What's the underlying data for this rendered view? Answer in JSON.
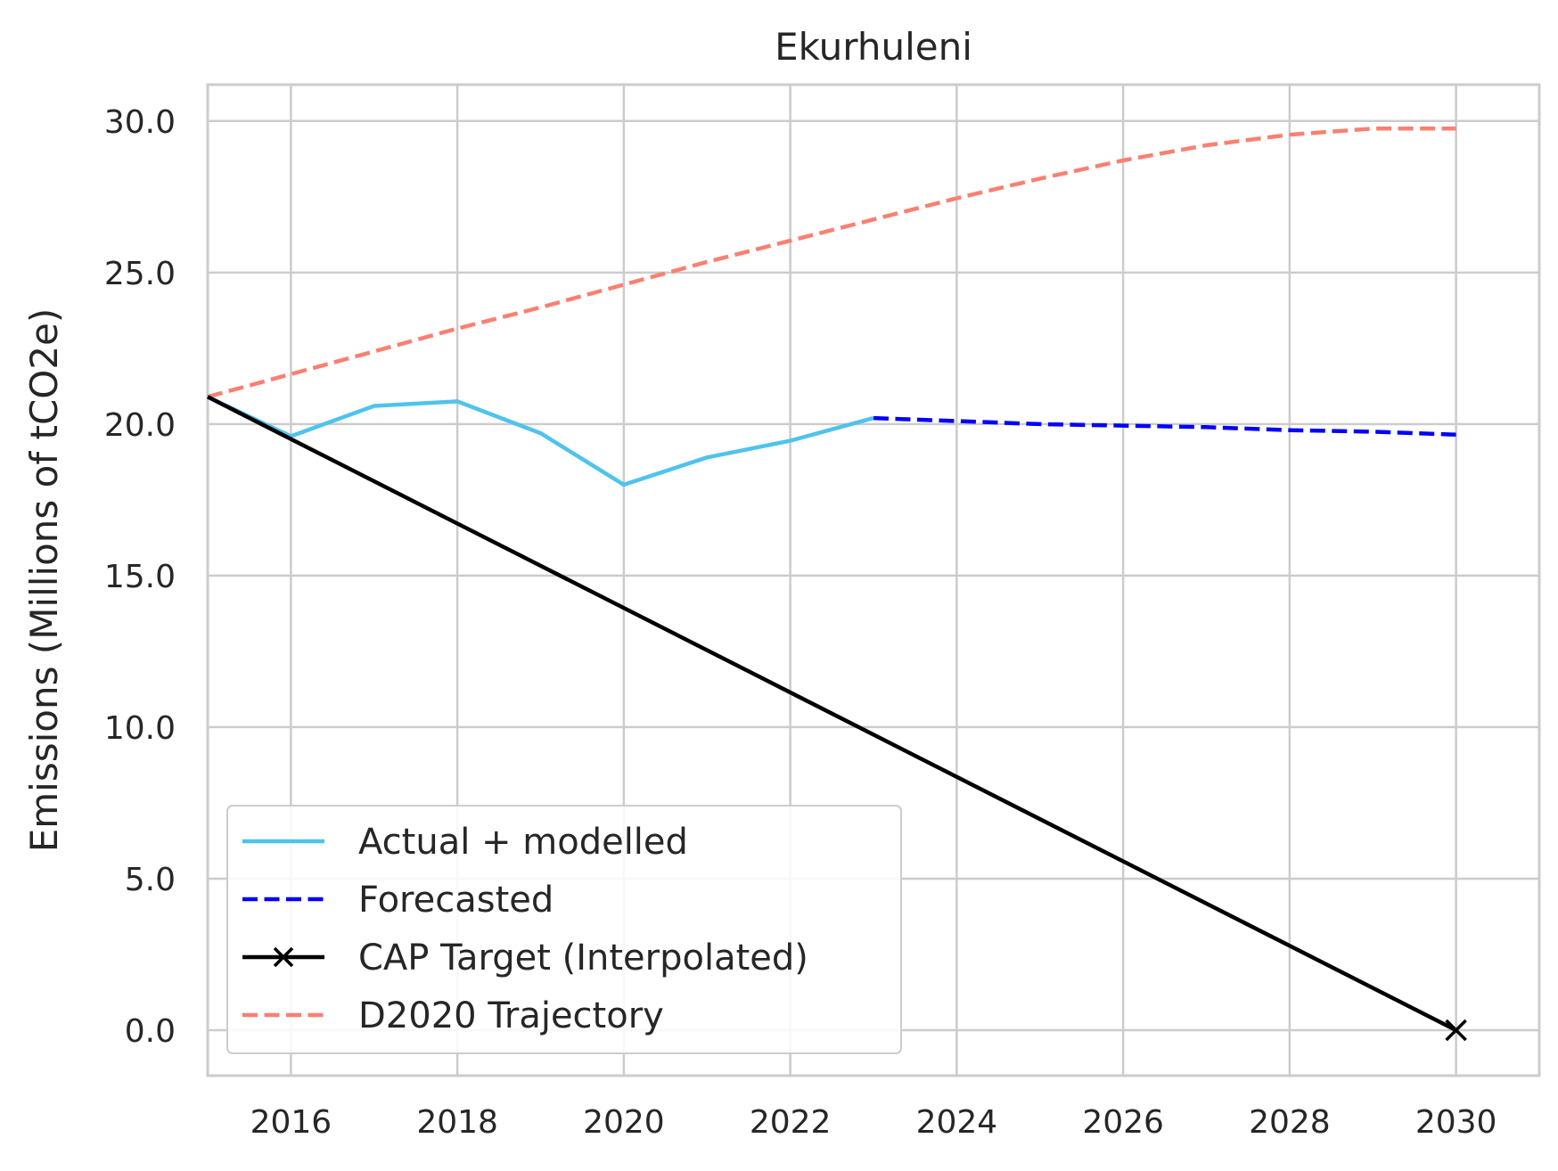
{
  "chart_data": {
    "type": "line",
    "title": "Ekurhuleni",
    "xlabel": "",
    "ylabel": "Emissions (Millions of tCO2e)",
    "xlim": [
      2015,
      2031
    ],
    "ylim": [
      -1.5,
      31.2
    ],
    "xticks": [
      2016,
      2018,
      2020,
      2022,
      2024,
      2026,
      2028,
      2030
    ],
    "yticks": [
      0,
      5,
      10,
      15,
      20,
      25,
      30
    ],
    "ytick_labels": [
      "0.0",
      "5.0",
      "10.0",
      "15.0",
      "20.0",
      "25.0",
      "30.0"
    ],
    "grid": true,
    "legend_position": "lower-left",
    "series": [
      {
        "name": "Actual + modelled",
        "color": "#4fc3ec",
        "style": "solid",
        "marker": "none",
        "x": [
          2015,
          2016,
          2017,
          2018,
          2019,
          2020,
          2021,
          2022,
          2023
        ],
        "y": [
          20.9,
          19.6,
          20.6,
          20.75,
          19.7,
          18.0,
          18.9,
          19.45,
          20.2
        ]
      },
      {
        "name": "Forecasted",
        "color": "#0000ff",
        "style": "dashed",
        "marker": "none",
        "x": [
          2023,
          2024,
          2025,
          2026,
          2027,
          2028,
          2029,
          2030
        ],
        "y": [
          20.2,
          20.1,
          20.0,
          19.95,
          19.9,
          19.8,
          19.75,
          19.65
        ]
      },
      {
        "name": "CAP Target (Interpolated)",
        "color": "#000000",
        "style": "solid",
        "marker": "x-at-end",
        "x": [
          2015,
          2030
        ],
        "y": [
          20.9,
          0.0
        ]
      },
      {
        "name": "D2020 Trajectory",
        "color": "#fa8072",
        "style": "dashed",
        "marker": "none",
        "x": [
          2015,
          2016,
          2017,
          2018,
          2019,
          2020,
          2021,
          2022,
          2023,
          2024,
          2025,
          2026,
          2027,
          2028,
          2029,
          2030
        ],
        "y": [
          20.9,
          21.65,
          22.4,
          23.15,
          23.85,
          24.6,
          25.35,
          26.05,
          26.75,
          27.45,
          28.1,
          28.7,
          29.2,
          29.55,
          29.75,
          29.75
        ]
      }
    ]
  }
}
